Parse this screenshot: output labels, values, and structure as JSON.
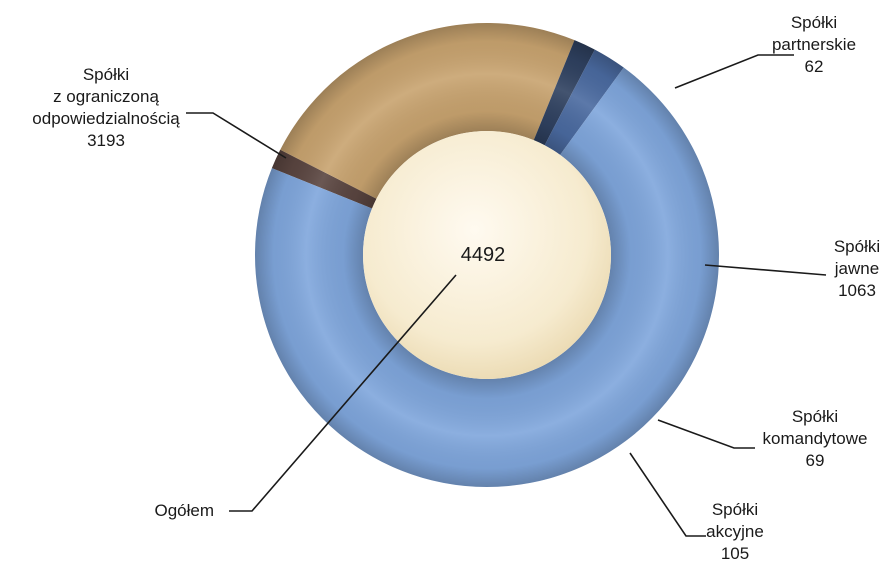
{
  "chart_data": {
    "type": "pie",
    "variant": "donut",
    "start_direction": "clockwise from top",
    "total": {
      "label": "Ogółem",
      "value": 4492
    },
    "slices": [
      {
        "label_lines": [
          "Spółki",
          "partnerskie"
        ],
        "value": 62,
        "color": "#5a4540"
      },
      {
        "label_lines": [
          "Spółki",
          "jawne"
        ],
        "value": 1063,
        "color": "#c8a36f"
      },
      {
        "label_lines": [
          "Spółki",
          "komandytowe"
        ],
        "value": 69,
        "color": "#2f4160"
      },
      {
        "label_lines": [
          "Spółki",
          "akcyjne"
        ],
        "value": 105,
        "color": "#4a6aa0"
      },
      {
        "label_lines": [
          "Spółki",
          "z ograniczoną",
          "odpowiedzialnością"
        ],
        "value": 3193,
        "color": "#7fa6dc"
      }
    ],
    "center_color": "#f6ebcf",
    "legend": "none (direct labels)"
  }
}
